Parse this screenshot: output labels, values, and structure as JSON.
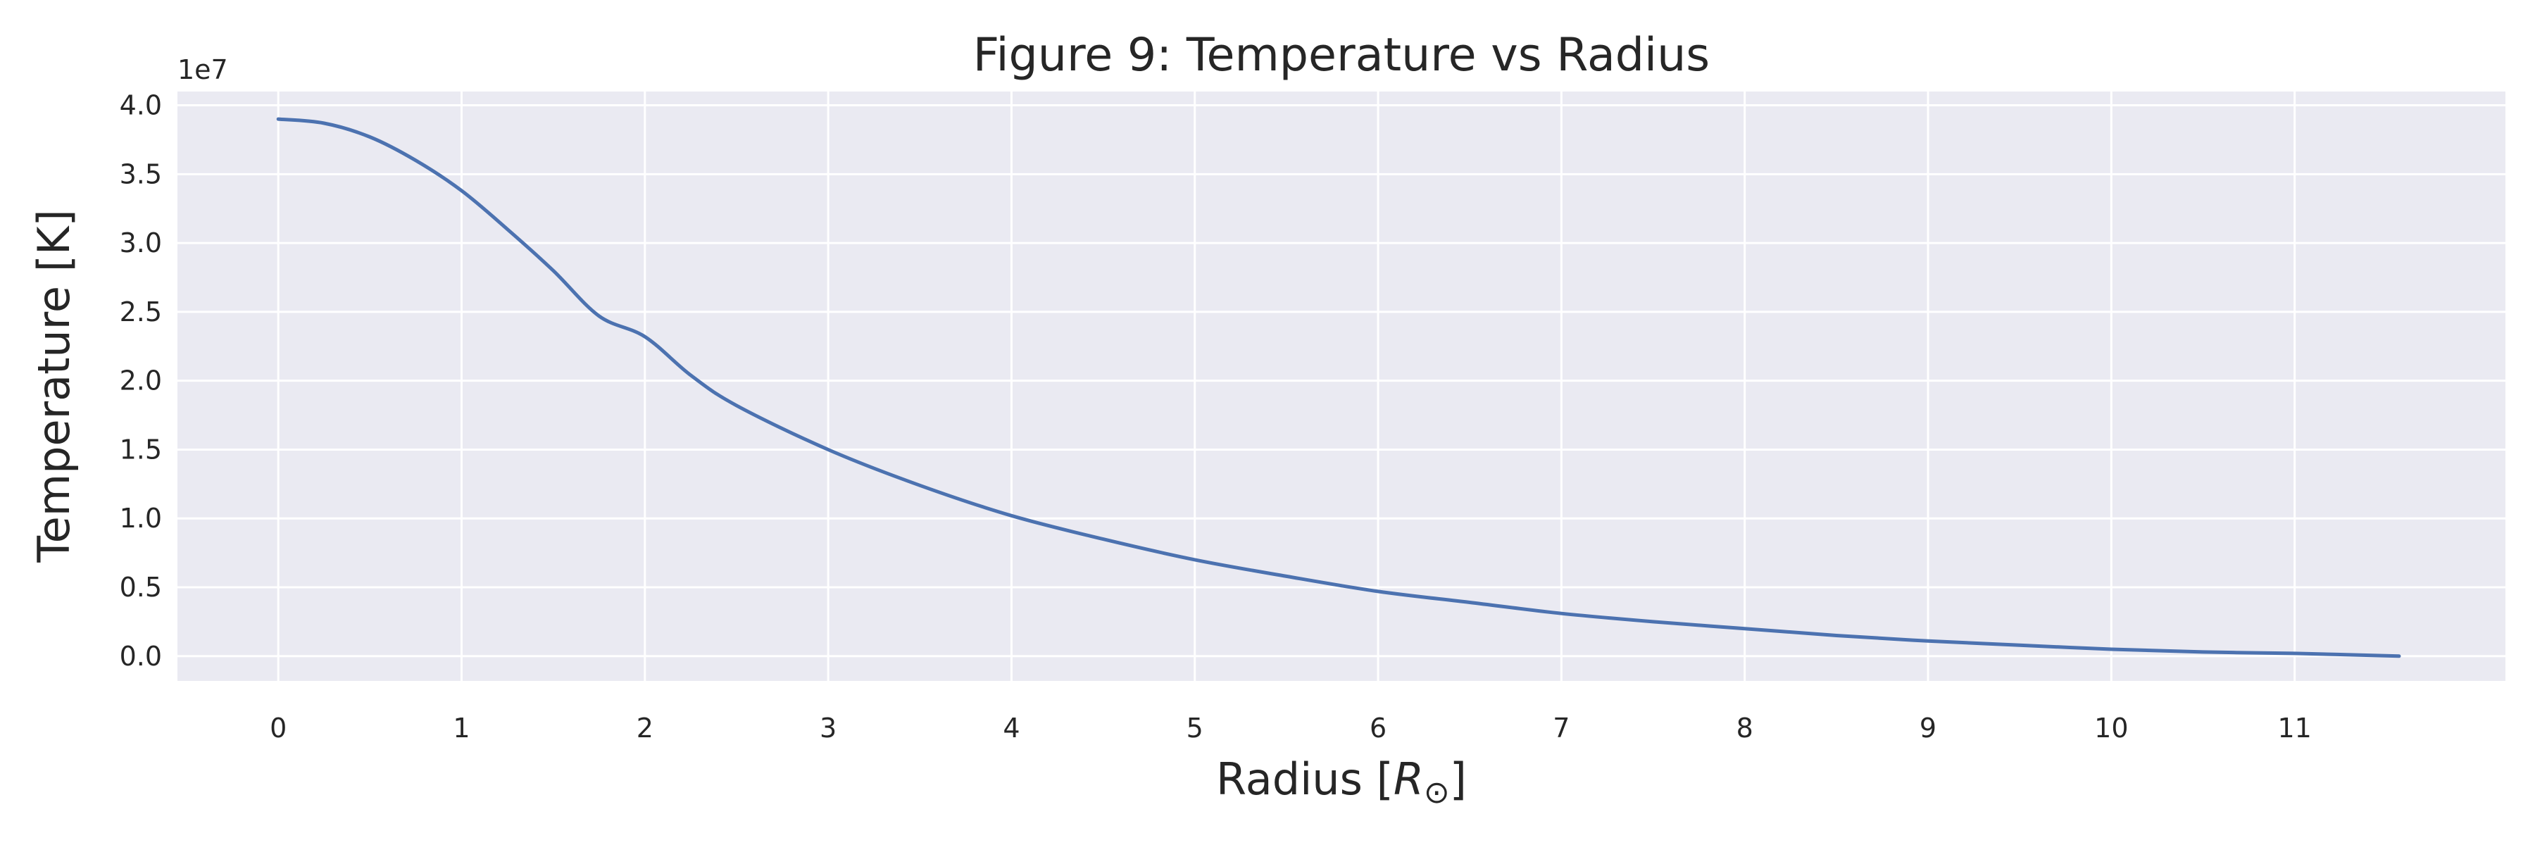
{
  "chart_data": {
    "type": "line",
    "title": "Figure 9: Temperature vs Radius",
    "xlabel": "Radius",
    "xlabel_unit": "R",
    "xlabel_unit_subscript": "⊙",
    "ylabel": "Temperature [K]",
    "y_offset_label": "1e7",
    "xlim": [
      -0.55,
      12.15
    ],
    "ylim": [
      -0.18,
      4.1
    ],
    "y_scale_factor": 10000000,
    "xticks": [
      0,
      1,
      2,
      3,
      4,
      5,
      6,
      7,
      8,
      9,
      10,
      11
    ],
    "xtick_labels": [
      "0",
      "1",
      "2",
      "3",
      "4",
      "5",
      "6",
      "7",
      "8",
      "9",
      "10",
      "11"
    ],
    "yticks": [
      0.0,
      0.5,
      1.0,
      1.5,
      2.0,
      2.5,
      3.0,
      3.5,
      4.0
    ],
    "ytick_labels": [
      "0.0",
      "0.5",
      "1.0",
      "1.5",
      "2.0",
      "2.5",
      "3.0",
      "3.5",
      "4.0"
    ],
    "grid": true,
    "background": "#eaeaf2",
    "grid_color": "#ffffff",
    "series": [
      {
        "color": "#4c72b0",
        "x": [
          0,
          0.25,
          0.5,
          0.75,
          1.0,
          1.25,
          1.5,
          1.75,
          2.0,
          2.25,
          2.5,
          3.0,
          3.5,
          4.0,
          4.5,
          5.0,
          5.5,
          6.0,
          6.5,
          7.0,
          7.5,
          8.0,
          8.5,
          9.0,
          9.5,
          10.0,
          10.5,
          11.0,
          11.57
        ],
        "y": [
          3.9,
          3.87,
          3.77,
          3.6,
          3.38,
          3.1,
          2.8,
          2.47,
          2.32,
          2.04,
          1.82,
          1.5,
          1.24,
          1.02,
          0.85,
          0.7,
          0.58,
          0.47,
          0.39,
          0.31,
          0.25,
          0.2,
          0.15,
          0.11,
          0.08,
          0.05,
          0.03,
          0.02,
          0.0
        ]
      }
    ]
  }
}
